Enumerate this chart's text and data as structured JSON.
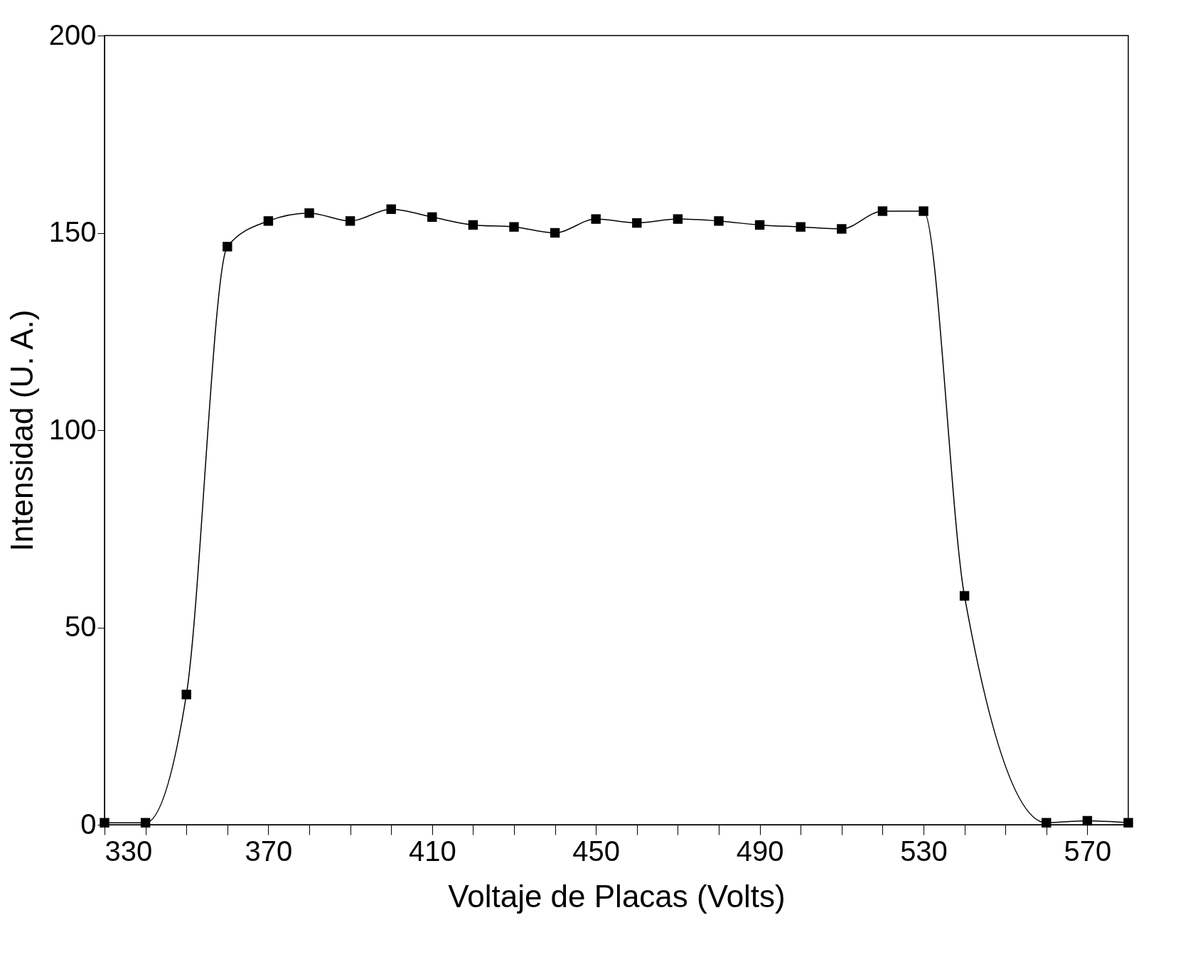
{
  "chart_data": {
    "type": "line",
    "xlabel": "Voltaje de Placas   (Volts)",
    "ylabel": "Intensidad (U. A.)",
    "x": [
      330,
      340,
      350,
      360,
      370,
      380,
      390,
      400,
      410,
      420,
      430,
      440,
      450,
      460,
      470,
      480,
      490,
      500,
      510,
      520,
      530,
      540,
      560,
      570,
      580
    ],
    "series": [
      {
        "color": "#000000",
        "values": [
          0.5,
          0.5,
          33,
          146.5,
          153,
          155,
          153,
          156,
          154,
          152,
          151.5,
          150,
          153.5,
          152.5,
          153.5,
          153,
          152,
          151.5,
          151,
          155.5,
          155.5,
          58,
          0.5,
          1,
          0.5
        ]
      }
    ],
    "xlim": [
      330,
      580
    ],
    "xticks": [
      330,
      {
        "value": 340,
        "label": null
      },
      {
        "value": 350,
        "label": null
      },
      {
        "value": 360,
        "label": null
      },
      370,
      {
        "value": 380,
        "label": null
      },
      {
        "value": 390,
        "label": null
      },
      {
        "value": 400,
        "label": null
      },
      410,
      {
        "value": 420,
        "label": null
      },
      {
        "value": 430,
        "label": null
      },
      {
        "value": 440,
        "label": null
      },
      450,
      {
        "value": 460,
        "label": null
      },
      {
        "value": 470,
        "label": null
      },
      {
        "value": 480,
        "label": null
      },
      490,
      {
        "value": 500,
        "label": null
      },
      {
        "value": 510,
        "label": null
      },
      {
        "value": 520,
        "label": null
      },
      530,
      {
        "value": 540,
        "label": null
      },
      {
        "value": 550,
        "label": null
      },
      {
        "value": 560,
        "label": null
      },
      570
    ],
    "ylim": [
      0,
      200
    ],
    "yticks": [
      0,
      50,
      100,
      150,
      200
    ],
    "grid": false,
    "marker": "square",
    "line_style": "solid"
  }
}
